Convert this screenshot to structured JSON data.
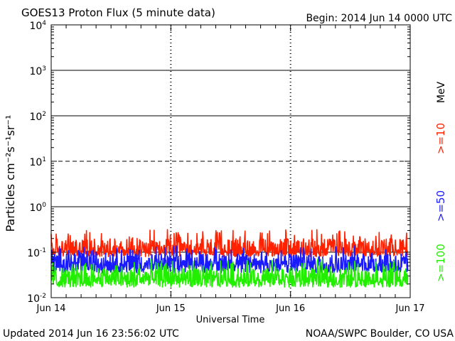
{
  "chart_data": {
    "type": "line",
    "title": "GOES13 Proton Flux (5 minute data)",
    "begin_label": "Begin: 2014 Jun 14 0000 UTC",
    "xlabel": "Universal Time",
    "ylabel": "Particles cm⁻²s⁻¹sr⁻¹",
    "unit_label": "MeV",
    "x_categories": [
      "Jun 14",
      "Jun 15",
      "Jun 16",
      "Jun 17"
    ],
    "xlim_days": [
      0,
      3
    ],
    "y_scale": "log",
    "ylim": [
      0.01,
      10000
    ],
    "y_ticks": [
      {
        "base": "10",
        "exp": "-2"
      },
      {
        "base": "10",
        "exp": "-1"
      },
      {
        "base": "10",
        "exp": "0"
      },
      {
        "base": "10",
        "exp": "1"
      },
      {
        "base": "10",
        "exp": "2"
      },
      {
        "base": "10",
        "exp": "3"
      },
      {
        "base": "10",
        "exp": "4"
      }
    ],
    "reference_lines": [
      {
        "value": 10,
        "style": "dashed"
      }
    ],
    "colors": {
      "background": "#ffffff",
      "frame": "#000000"
    },
    "data_span_days": [
      0,
      2.98
    ],
    "series": [
      {
        "name": ">=10",
        "color": "#ff2200",
        "approx_median": 0.11,
        "approx_min": 0.08,
        "approx_max": 0.32
      },
      {
        "name": ">=50",
        "color": "#1a1aff",
        "approx_median": 0.055,
        "approx_min": 0.035,
        "approx_max": 0.14
      },
      {
        "name": ">=100",
        "color": "#22ee00",
        "approx_median": 0.025,
        "approx_min": 0.017,
        "approx_max": 0.07
      }
    ],
    "footer_left": "Updated 2014 Jun 16 23:56:02 UTC",
    "footer_right": "NOAA/SWPC Boulder, CO USA"
  }
}
